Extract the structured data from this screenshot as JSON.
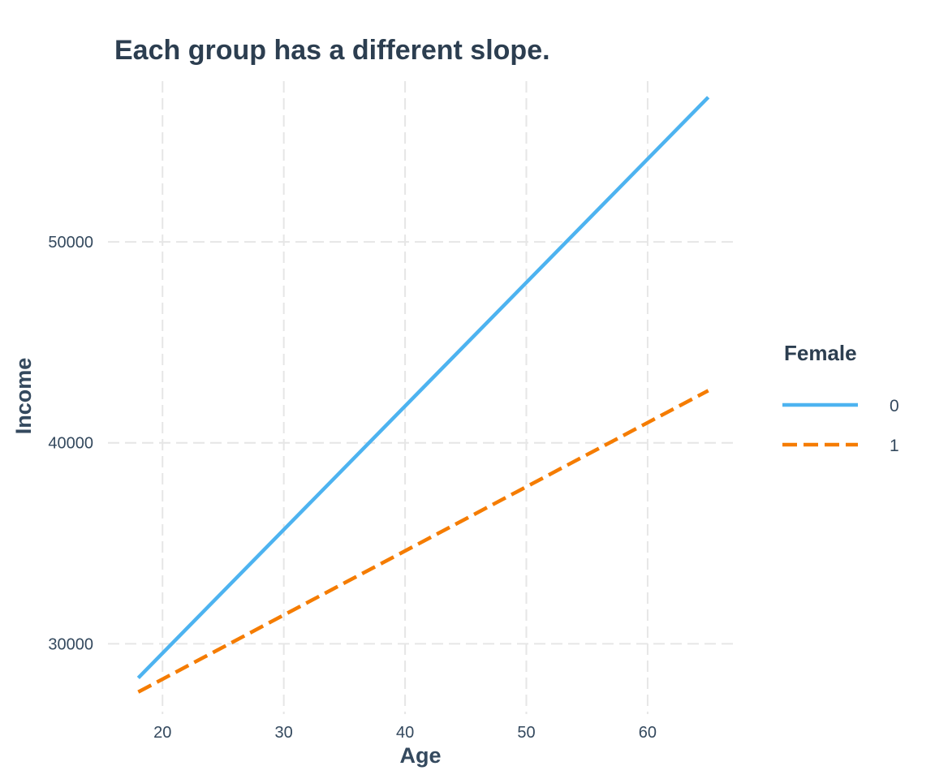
{
  "chart_data": {
    "type": "line",
    "title": "Each group has a different slope.",
    "xlabel": "Age",
    "ylabel": "Income",
    "xlim": [
      15.5,
      67.5
    ],
    "ylim": [
      26500,
      58000
    ],
    "x_ticks": [
      20,
      30,
      40,
      50,
      60
    ],
    "y_ticks": [
      30000,
      40000,
      50000
    ],
    "x_tick_labels": [
      "20",
      "30",
      "40",
      "50",
      "60"
    ],
    "y_tick_labels": [
      "30000",
      "40000",
      "50000"
    ],
    "grid": true,
    "legend": {
      "title": "Female",
      "position": "right"
    },
    "series": [
      {
        "name": "0",
        "color": "#4db3f0",
        "dash": "solid",
        "x": [
          18,
          65
        ],
        "y": [
          28300,
          57200
        ]
      },
      {
        "name": "1",
        "color": "#f57c00",
        "dash": "dashed",
        "x": [
          18,
          65
        ],
        "y": [
          27600,
          42600
        ]
      }
    ]
  }
}
